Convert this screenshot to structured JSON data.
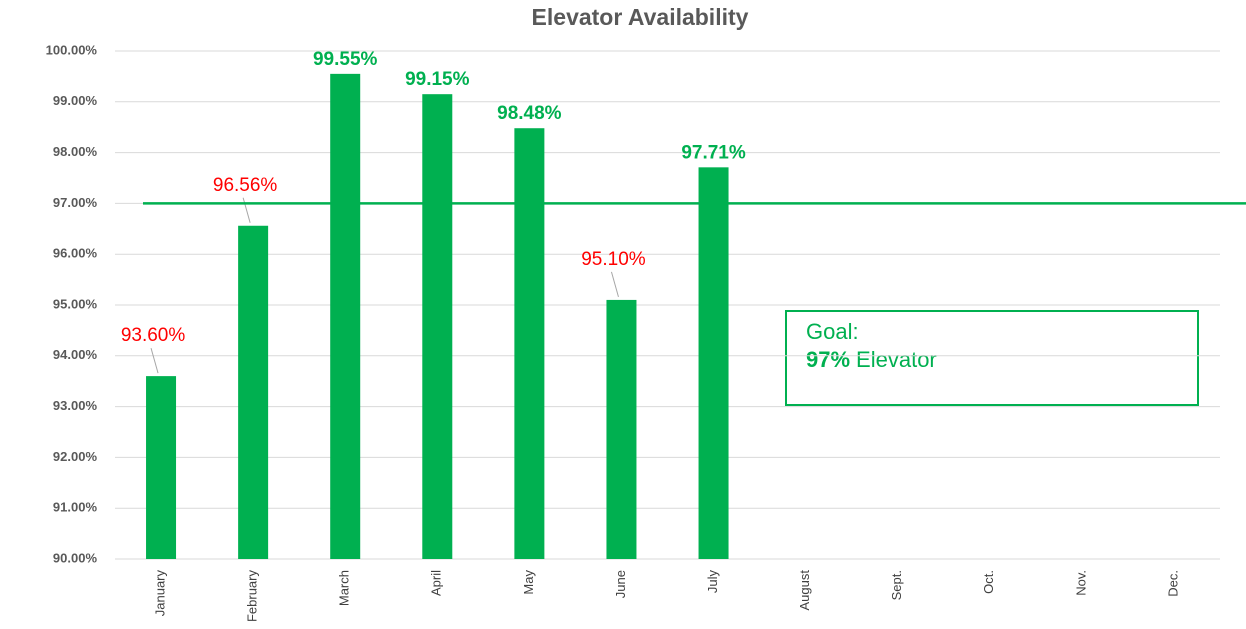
{
  "chart_data": {
    "type": "bar",
    "title": "Elevator Availability",
    "categories": [
      "January",
      "February",
      "March",
      "April",
      "May",
      "June",
      "July",
      "August",
      "Sept.",
      "Oct.",
      "Nov.",
      "Dec."
    ],
    "values": [
      93.6,
      96.56,
      99.55,
      99.15,
      98.48,
      95.1,
      97.71,
      null,
      null,
      null,
      null,
      null
    ],
    "value_labels": [
      "93.60%",
      "96.56%",
      "99.55%",
      "99.15%",
      "98.48%",
      "95.10%",
      "97.71%",
      null,
      null,
      null,
      null,
      null
    ],
    "color": "#00b050",
    "below_goal_color": "#ff0000",
    "goal": 97,
    "annotation": {
      "title": "Goal:",
      "value_text": "97%",
      "text": "Elevator"
    },
    "ylim": [
      90,
      100
    ],
    "yticks": [
      {
        "value": 90,
        "label": "90.00%"
      },
      {
        "value": 91,
        "label": "91.00%"
      },
      {
        "value": 92,
        "label": "92.00%"
      },
      {
        "value": 93,
        "label": "93.00%"
      },
      {
        "value": 94,
        "label": "94.00%"
      },
      {
        "value": 95,
        "label": "95.00%"
      },
      {
        "value": 96,
        "label": "96.00%"
      },
      {
        "value": 97,
        "label": "97.00%"
      },
      {
        "value": 98,
        "label": "98.00%"
      },
      {
        "value": 99,
        "label": "99.00%"
      },
      {
        "value": 100,
        "label": "100.00%"
      }
    ],
    "grid": true
  }
}
